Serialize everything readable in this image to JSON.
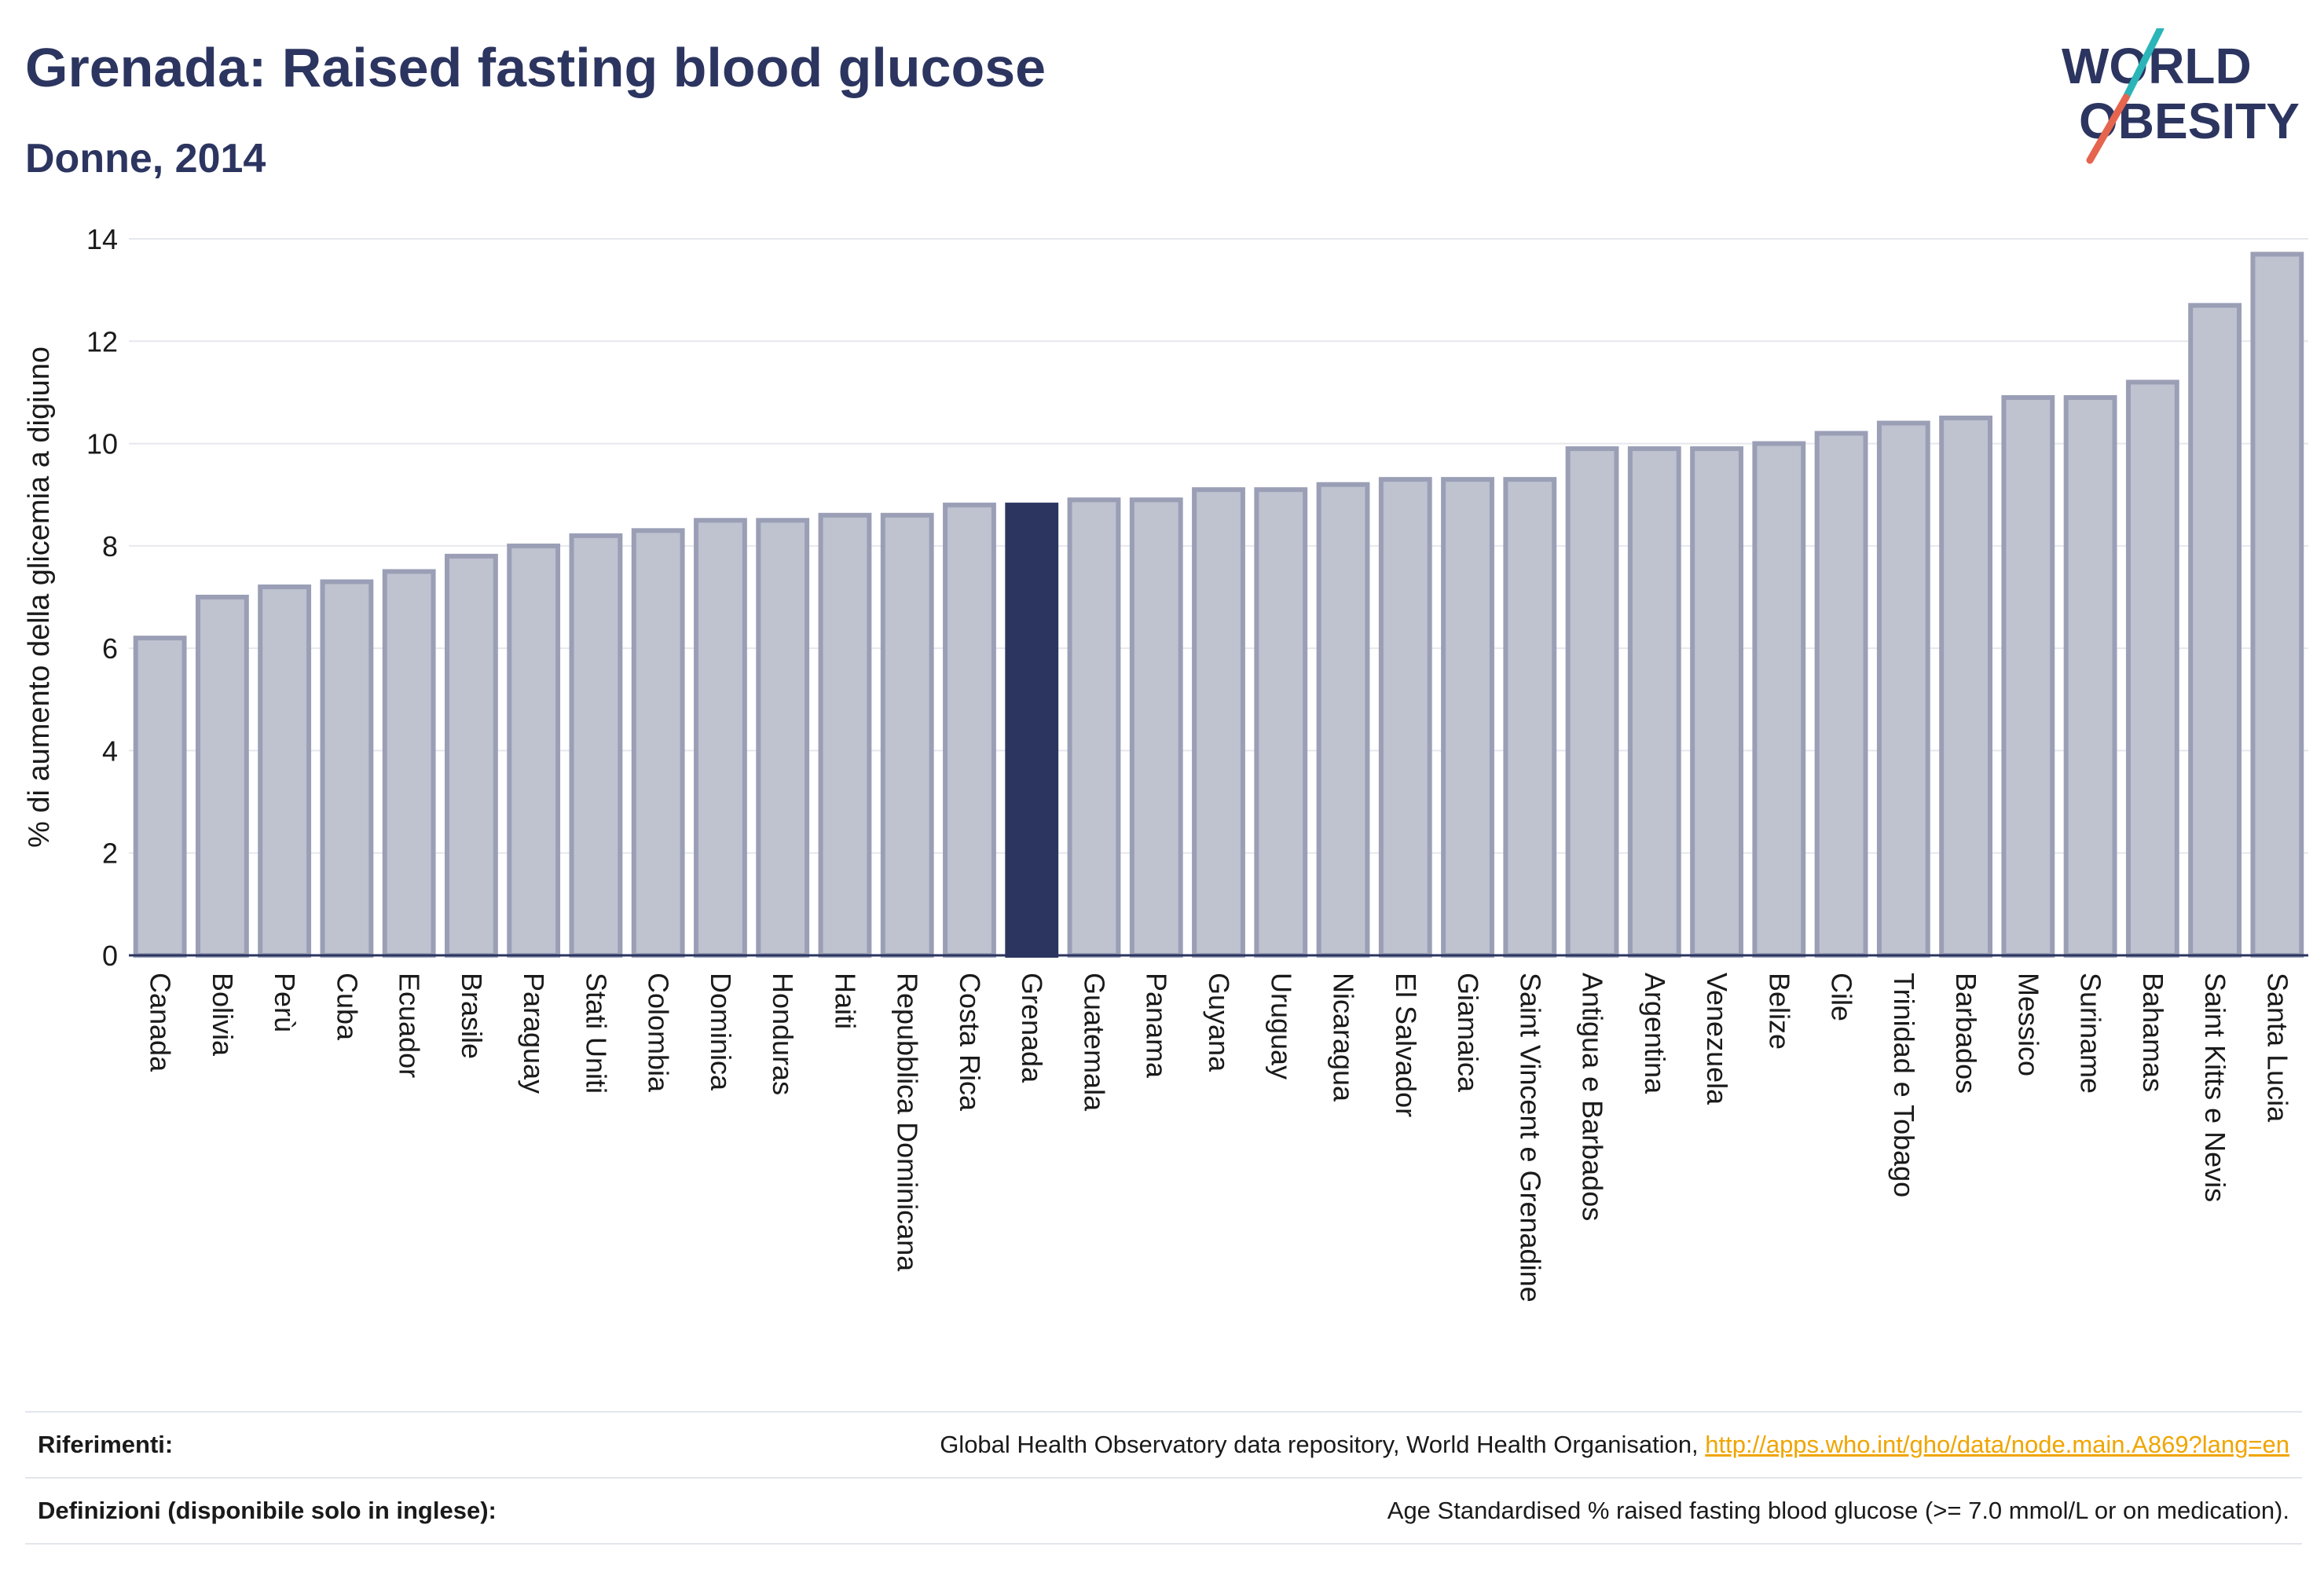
{
  "header": {
    "title": "Grenada: Raised fasting blood glucose",
    "subtitle": "Donne, 2014"
  },
  "logo": {
    "line1": "WORLD",
    "line2": "OBESITY"
  },
  "chart_data": {
    "type": "bar",
    "ylabel": "% di aumento della glicemia a digiuno",
    "xlabel": "",
    "ylim": [
      0,
      14
    ],
    "yticks": [
      0,
      2,
      4,
      6,
      8,
      10,
      12,
      14
    ],
    "grid": true,
    "highlight": "Grenada",
    "colors": {
      "bar": "#bfc2cf",
      "bar_border": "#9a9fb6",
      "highlight": "#2c3560",
      "grid": "#e6e8ee",
      "axis": "#2c3560"
    },
    "categories": [
      "Canada",
      "Bolivia",
      "Perù",
      "Cuba",
      "Ecuador",
      "Brasile",
      "Paraguay",
      "Stati Uniti",
      "Colombia",
      "Dominica",
      "Honduras",
      "Haiti",
      "Repubblica Dominicana",
      "Costa Rica",
      "Grenada",
      "Guatemala",
      "Panama",
      "Guyana",
      "Uruguay",
      "Nicaragua",
      "El Salvador",
      "Giamaica",
      "Saint Vincent e Grenadine",
      "Antigua e Barbados",
      "Argentina",
      "Venezuela",
      "Belize",
      "Cile",
      "Trinidad e Tobago",
      "Barbados",
      "Messico",
      "Suriname",
      "Bahamas",
      "Saint Kitts e Nevis",
      "Santa Lucia"
    ],
    "values": [
      6.2,
      7.0,
      7.2,
      7.3,
      7.5,
      7.8,
      8.0,
      8.2,
      8.3,
      8.5,
      8.5,
      8.6,
      8.6,
      8.8,
      8.8,
      8.9,
      8.9,
      9.1,
      9.1,
      9.2,
      9.3,
      9.3,
      9.3,
      9.9,
      9.9,
      9.9,
      10.0,
      10.2,
      10.4,
      10.5,
      10.9,
      10.9,
      11.2,
      12.7,
      13.7
    ]
  },
  "footer": {
    "references_label": "Riferimenti:",
    "references_text": "Global Health Observatory data repository, World Health Organisation, ",
    "references_link": "http://apps.who.int/gho/data/node.main.A869?lang=en",
    "definitions_label": "Definizioni (disponibile solo in inglese):",
    "definitions_text": "Age Standardised % raised fasting blood glucose (>= 7.0 mmol/L or on medication)."
  }
}
